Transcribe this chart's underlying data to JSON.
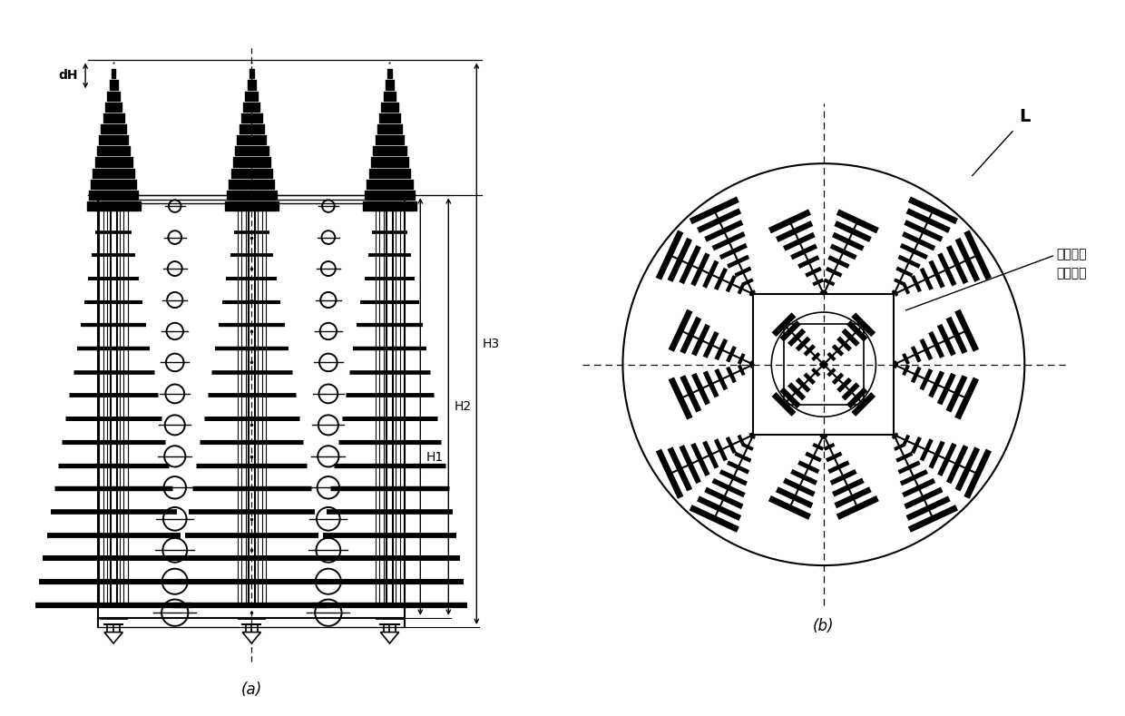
{
  "fig_width": 12.4,
  "fig_height": 7.89,
  "bg_color": "#ffffff",
  "label_a": "(a)",
  "label_b": "(b)",
  "dH_label": "dH",
  "H1_label": "H1",
  "H2_label": "H2",
  "H3_label": "H3",
  "L_label": "L",
  "annotation_chinese": "低频单元\n倾斜安装",
  "line_color": "#000000"
}
